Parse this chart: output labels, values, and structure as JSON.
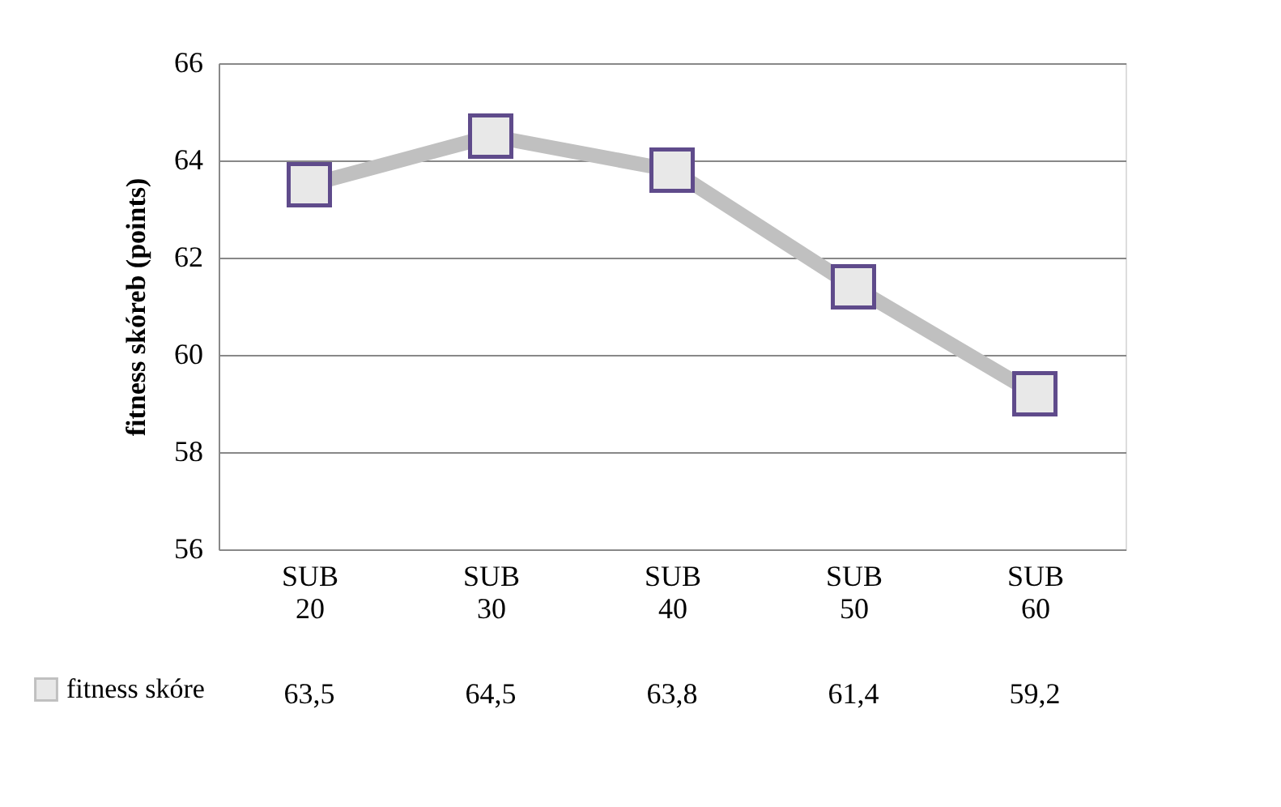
{
  "chart_data": {
    "type": "line",
    "ylabel": "fitness skóreb (points)",
    "categories": [
      "SUB 20",
      "SUB 30",
      "SUB 40",
      "SUB 50",
      "SUB 60"
    ],
    "series": [
      {
        "name": "fitness skóre",
        "color": "#c0c0c0",
        "values": [
          63.5,
          64.5,
          63.8,
          61.4,
          59.2
        ],
        "value_labels": [
          "63,5",
          "64,5",
          "63,8",
          "61,4",
          "59,2"
        ]
      }
    ],
    "ylim": [
      56,
      66
    ],
    "yticks": [
      56,
      58,
      60,
      62,
      64,
      66
    ],
    "grid": "y",
    "legend": "bottom left",
    "marker": "square",
    "line_style": "solid"
  }
}
